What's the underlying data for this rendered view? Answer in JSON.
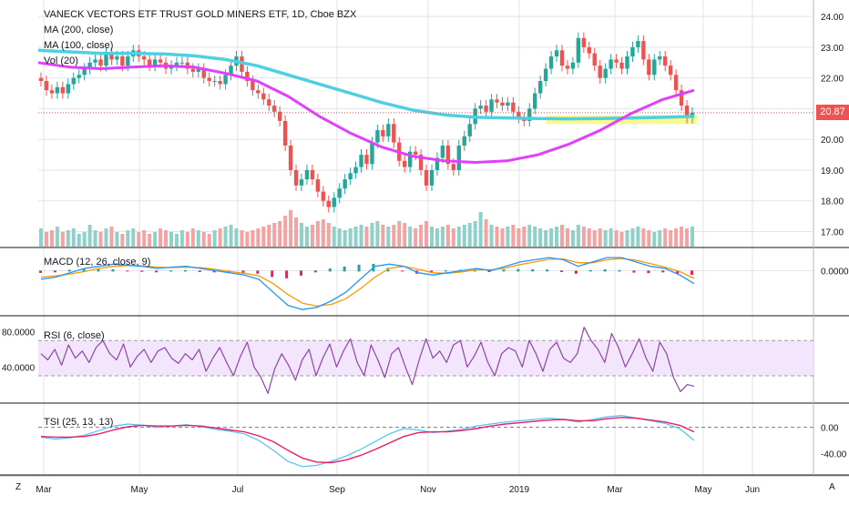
{
  "legend": {
    "title": "VANECK VECTORS ETF TRUST GOLD MINERS ETF, 1D, Cboe BZX",
    "ma200": "MA (200, close)",
    "ma100": "MA (100, close)",
    "vol": "Vol (20)"
  },
  "panes": {
    "macd": "MACD (12, 26, close, 9)",
    "rsi": "RSI (6, close)",
    "tsi": "TSI (25, 13, 13)"
  },
  "last_price": "20.87",
  "corner_left": "Z",
  "corner_right": "A",
  "colors": {
    "up": "#26a69a",
    "down": "#ef5350",
    "ma200": "#4dd0e1",
    "ma100": "#e040fb",
    "macd": "#2196f3",
    "signal": "#ff9800",
    "rsi": "#8e44ad",
    "tsi_main": "#4fc3f7",
    "tsi_signal": "#e91e63",
    "zone": "#f5f542",
    "grid": "#e0e3eb",
    "price_line": "#ef5350",
    "rsi_band": "#f3e5fb"
  },
  "chart_data": [
    {
      "type": "candlestick",
      "name": "price",
      "x_labels": [
        "Mar",
        "May",
        "Jul",
        "Sep",
        "Nov",
        "2019",
        "Mar",
        "May",
        "Jun"
      ],
      "y_ticks": [
        "24.00",
        "23.00",
        "22.00",
        "21.00",
        "20.00",
        "19.00",
        "18.00",
        "17.00"
      ],
      "ylim": [
        16.6,
        24.3
      ],
      "last": 20.87,
      "support_zone": [
        20.5,
        20.78
      ],
      "ma200": [
        22.9,
        22.85,
        22.8,
        22.8,
        22.78,
        22.72,
        22.6,
        22.4,
        22.1,
        21.8,
        21.5,
        21.2,
        20.95,
        20.8,
        20.72,
        20.7,
        20.68,
        20.67,
        20.68,
        20.7,
        20.72,
        20.75
      ],
      "ma100": [
        22.5,
        22.35,
        22.3,
        22.35,
        22.4,
        22.35,
        22.15,
        21.9,
        21.4,
        20.75,
        20.2,
        19.75,
        19.45,
        19.3,
        19.25,
        19.3,
        19.5,
        19.85,
        20.3,
        20.85,
        21.3,
        21.6
      ],
      "closes": [
        21.9,
        21.6,
        21.5,
        21.7,
        21.5,
        21.8,
        22.0,
        22.1,
        22.3,
        22.5,
        22.6,
        22.4,
        22.8,
        22.6,
        22.7,
        22.4,
        22.7,
        22.9,
        22.7,
        22.6,
        22.4,
        22.6,
        22.5,
        22.3,
        22.4,
        22.5,
        22.5,
        22.3,
        22.2,
        22.3,
        22.0,
        21.9,
        21.9,
        21.8,
        22.1,
        22.4,
        22.7,
        22.2,
        21.9,
        21.6,
        21.5,
        21.3,
        21.1,
        20.9,
        20.6,
        19.8,
        19.0,
        18.5,
        18.7,
        19.0,
        18.7,
        18.3,
        18.0,
        17.8,
        18.1,
        18.4,
        18.7,
        18.9,
        19.1,
        19.5,
        19.2,
        19.9,
        20.3,
        20.1,
        20.5,
        19.9,
        19.3,
        19.1,
        19.6,
        19.5,
        19.0,
        18.5,
        19.0,
        19.4,
        19.8,
        19.2,
        19.0,
        19.8,
        20.1,
        20.5,
        21.0,
        21.1,
        20.9,
        21.3,
        21.2,
        21.1,
        21.2,
        20.9,
        20.7,
        20.6,
        21.0,
        21.5,
        21.9,
        22.3,
        22.7,
        22.9,
        22.4,
        22.3,
        22.5,
        23.3,
        23.0,
        22.8,
        22.4,
        22.0,
        22.3,
        22.6,
        22.5,
        22.3,
        22.7,
        23.0,
        23.2,
        22.6,
        22.1,
        22.6,
        22.7,
        22.4,
        22.1,
        21.6,
        21.1,
        20.7,
        20.87
      ],
      "volume": [
        0.5,
        0.4,
        0.45,
        0.55,
        0.4,
        0.45,
        0.5,
        0.35,
        0.4,
        0.6,
        0.45,
        0.4,
        0.5,
        0.55,
        0.4,
        0.35,
        0.45,
        0.5,
        0.4,
        0.45,
        0.35,
        0.4,
        0.5,
        0.45,
        0.4,
        0.35,
        0.45,
        0.4,
        0.5,
        0.45,
        0.4,
        0.35,
        0.45,
        0.5,
        0.55,
        0.6,
        0.5,
        0.45,
        0.4,
        0.45,
        0.5,
        0.55,
        0.6,
        0.65,
        0.7,
        0.85,
        1.0,
        0.8,
        0.65,
        0.55,
        0.6,
        0.7,
        0.75,
        0.65,
        0.55,
        0.5,
        0.45,
        0.5,
        0.55,
        0.6,
        0.55,
        0.65,
        0.7,
        0.6,
        0.55,
        0.6,
        0.7,
        0.65,
        0.55,
        0.5,
        0.6,
        0.7,
        0.55,
        0.5,
        0.55,
        0.6,
        0.5,
        0.55,
        0.6,
        0.65,
        0.7,
        0.95,
        0.75,
        0.6,
        0.55,
        0.5,
        0.55,
        0.6,
        0.5,
        0.55,
        0.6,
        0.55,
        0.5,
        0.45,
        0.5,
        0.55,
        0.6,
        0.5,
        0.45,
        0.6,
        0.55,
        0.5,
        0.45,
        0.5,
        0.45,
        0.5,
        0.45,
        0.4,
        0.45,
        0.5,
        0.55,
        0.5,
        0.45,
        0.4,
        0.45,
        0.5,
        0.45,
        0.5,
        0.55,
        0.5,
        0.55
      ]
    },
    {
      "type": "line",
      "name": "MACD",
      "y_ticks": [
        "0.0000"
      ],
      "macd": [
        -0.2,
        -0.15,
        -0.05,
        0.05,
        0.1,
        0.15,
        0.12,
        0.1,
        0.05,
        0.08,
        0.1,
        0.05,
        0.0,
        -0.05,
        -0.1,
        -0.2,
        -0.5,
        -0.8,
        -0.9,
        -0.85,
        -0.7,
        -0.5,
        -0.2,
        0.1,
        0.15,
        0.1,
        -0.05,
        -0.1,
        -0.05,
        0.0,
        0.05,
        0.0,
        0.1,
        0.2,
        0.25,
        0.3,
        0.25,
        0.1,
        0.2,
        0.3,
        0.3,
        0.2,
        0.1,
        0.05,
        -0.1,
        -0.3
      ],
      "signal": [
        -0.15,
        -0.12,
        -0.08,
        -0.02,
        0.05,
        0.1,
        0.12,
        0.11,
        0.08,
        0.07,
        0.08,
        0.07,
        0.03,
        -0.02,
        -0.06,
        -0.12,
        -0.3,
        -0.55,
        -0.75,
        -0.82,
        -0.78,
        -0.65,
        -0.42,
        -0.15,
        0.05,
        0.1,
        0.03,
        -0.05,
        -0.06,
        -0.03,
        0.02,
        0.02,
        0.06,
        0.14,
        0.2,
        0.26,
        0.27,
        0.18,
        0.18,
        0.25,
        0.28,
        0.24,
        0.16,
        0.08,
        -0.02,
        -0.18
      ],
      "ylim": [
        -1.0,
        0.45
      ]
    },
    {
      "type": "line",
      "name": "RSI",
      "y_ticks": [
        "80.0000",
        "40.0000"
      ],
      "bands": [
        70,
        30
      ],
      "values": [
        55,
        48,
        60,
        42,
        65,
        50,
        58,
        45,
        62,
        70,
        55,
        48,
        66,
        40,
        52,
        60,
        45,
        58,
        62,
        50,
        44,
        55,
        48,
        60,
        35,
        50,
        62,
        45,
        30,
        52,
        68,
        40,
        28,
        10,
        38,
        55,
        42,
        25,
        48,
        60,
        30,
        50,
        66,
        40,
        58,
        72,
        45,
        30,
        65,
        48,
        28,
        55,
        62,
        40,
        20,
        48,
        72,
        50,
        58,
        45,
        65,
        70,
        40,
        52,
        68,
        45,
        30,
        55,
        62,
        58,
        40,
        70,
        55,
        35,
        60,
        68,
        50,
        45,
        55,
        85,
        70,
        60,
        45,
        78,
        62,
        40,
        55,
        72,
        50,
        35,
        68,
        55,
        28,
        12,
        20,
        18
      ],
      "ylim": [
        0,
        95
      ]
    },
    {
      "type": "line",
      "name": "TSI",
      "y_ticks": [
        "0.00",
        "-40.00"
      ],
      "main": [
        -15,
        -18,
        -16,
        -12,
        -5,
        2,
        5,
        3,
        0,
        2,
        4,
        1,
        -3,
        -6,
        -10,
        -20,
        -35,
        -52,
        -60,
        -58,
        -52,
        -44,
        -34,
        -22,
        -10,
        -2,
        -4,
        -8,
        -6,
        -3,
        2,
        5,
        8,
        10,
        12,
        14,
        12,
        8,
        12,
        16,
        18,
        14,
        10,
        6,
        -2,
        -20
      ],
      "signal": [
        -14,
        -15,
        -15,
        -14,
        -10,
        -4,
        1,
        3,
        2,
        2,
        3,
        2,
        -1,
        -4,
        -7,
        -13,
        -22,
        -35,
        -47,
        -53,
        -54,
        -50,
        -43,
        -34,
        -24,
        -14,
        -8,
        -7,
        -7,
        -5,
        -2,
        2,
        5,
        7,
        9,
        11,
        12,
        10,
        10,
        13,
        15,
        14,
        11,
        8,
        3,
        -7
      ],
      "ylim": [
        -70,
        30
      ]
    }
  ]
}
